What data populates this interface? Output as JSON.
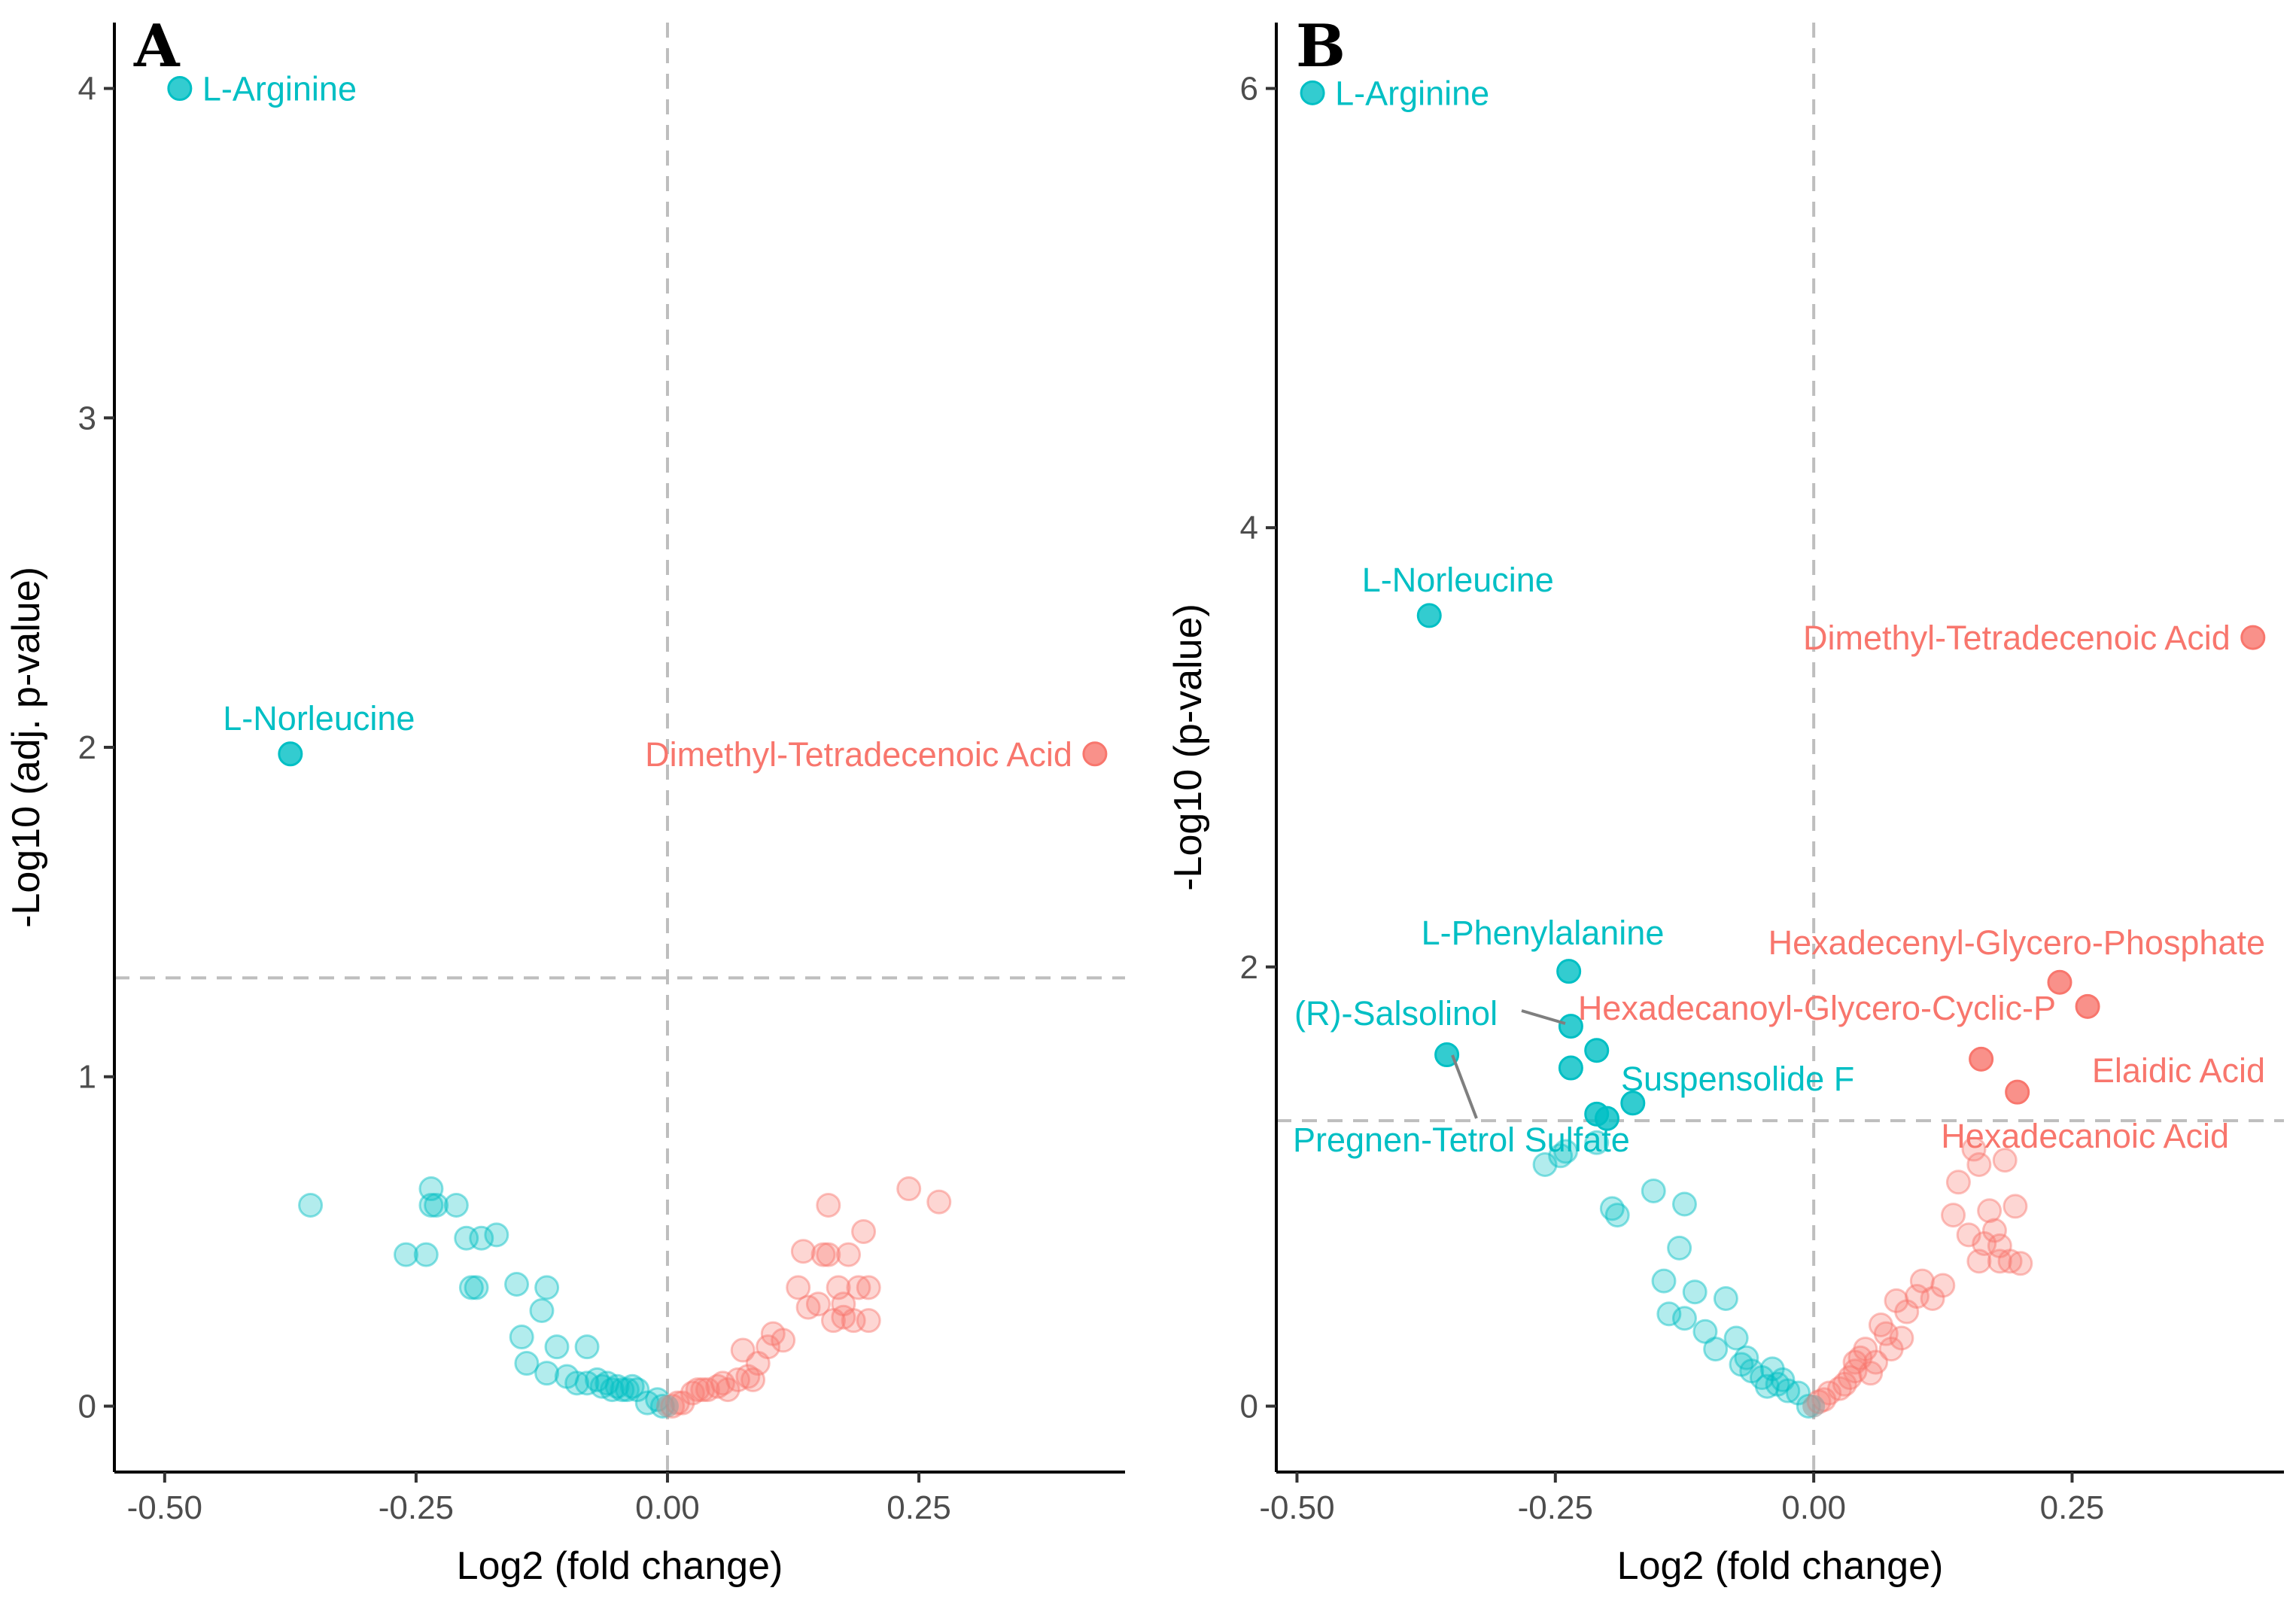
{
  "colors": {
    "up": "#F8766D",
    "down": "#00BFC4",
    "threshold": "#BEBEBE",
    "label_leader": "#7F7F7F"
  },
  "chart_data": [
    {
      "type": "scatter",
      "panel": "A",
      "xlabel": "Log2 (fold change)",
      "ylabel": "-Log10 (adj. p-value)",
      "xlim": [
        -0.55,
        0.455
      ],
      "ylim": [
        -0.2,
        4.2
      ],
      "xticks": [
        -0.5,
        -0.25,
        0,
        0.25
      ],
      "xtick_labels": [
        "-0.50",
        "-0.25",
        "0.00",
        "0.25"
      ],
      "yticks": [
        0,
        1,
        2,
        3,
        4
      ],
      "ytick_labels": [
        "0",
        "1",
        "2",
        "3",
        "4"
      ],
      "threshold_y": 1.3,
      "threshold_x": 0,
      "significant": [
        {
          "name": "L-Arginine",
          "x": -0.485,
          "y": 4.0,
          "group": "down",
          "label": "L-Arginine",
          "anchor": "right"
        },
        {
          "name": "L-Norleucine",
          "x": -0.375,
          "y": 1.98,
          "group": "down",
          "label": "L-Norleucine",
          "anchor": "above"
        },
        {
          "name": "Dimethyl-Tetradecenoic Acid",
          "x": 0.425,
          "y": 1.98,
          "group": "up",
          "label": "Dimethyl-Tetradecenoic Acid",
          "anchor": "left"
        }
      ],
      "nonsignificant": [
        [
          -0.355,
          0.61
        ],
        [
          -0.26,
          0.46
        ],
        [
          -0.24,
          0.46
        ],
        [
          -0.235,
          0.66
        ],
        [
          -0.235,
          0.61
        ],
        [
          -0.23,
          0.61
        ],
        [
          -0.21,
          0.61
        ],
        [
          -0.2,
          0.51
        ],
        [
          -0.195,
          0.36
        ],
        [
          -0.19,
          0.36
        ],
        [
          -0.185,
          0.51
        ],
        [
          -0.17,
          0.52
        ],
        [
          -0.15,
          0.37
        ],
        [
          -0.145,
          0.21
        ],
        [
          -0.14,
          0.13
        ],
        [
          -0.125,
          0.29
        ],
        [
          -0.12,
          0.36
        ],
        [
          -0.12,
          0.1
        ],
        [
          -0.11,
          0.18
        ],
        [
          -0.1,
          0.09
        ],
        [
          -0.09,
          0.07
        ],
        [
          -0.08,
          0.18
        ],
        [
          -0.08,
          0.07
        ],
        [
          -0.07,
          0.08
        ],
        [
          -0.065,
          0.06
        ],
        [
          -0.06,
          0.07
        ],
        [
          -0.055,
          0.05
        ],
        [
          -0.05,
          0.06
        ],
        [
          -0.045,
          0.05
        ],
        [
          -0.04,
          0.05
        ],
        [
          -0.035,
          0.06
        ],
        [
          -0.03,
          0.05
        ],
        [
          -0.02,
          0.01
        ],
        [
          -0.01,
          0.02
        ],
        [
          -0.005,
          0.0
        ],
        [
          0.005,
          0.0
        ],
        [
          0.01,
          0.01
        ],
        [
          0.015,
          0.01
        ],
        [
          0.025,
          0.04
        ],
        [
          0.03,
          0.05
        ],
        [
          0.035,
          0.05
        ],
        [
          0.04,
          0.05
        ],
        [
          0.05,
          0.06
        ],
        [
          0.055,
          0.07
        ],
        [
          0.06,
          0.05
        ],
        [
          0.07,
          0.08
        ],
        [
          0.075,
          0.17
        ],
        [
          0.08,
          0.09
        ],
        [
          0.085,
          0.08
        ],
        [
          0.09,
          0.13
        ],
        [
          0.1,
          0.18
        ],
        [
          0.105,
          0.22
        ],
        [
          0.115,
          0.2
        ],
        [
          0.13,
          0.36
        ],
        [
          0.135,
          0.47
        ],
        [
          0.14,
          0.3
        ],
        [
          0.15,
          0.31
        ],
        [
          0.155,
          0.46
        ],
        [
          0.16,
          0.61
        ],
        [
          0.16,
          0.46
        ],
        [
          0.165,
          0.26
        ],
        [
          0.17,
          0.36
        ],
        [
          0.175,
          0.27
        ],
        [
          0.175,
          0.31
        ],
        [
          0.18,
          0.46
        ],
        [
          0.185,
          0.26
        ],
        [
          0.19,
          0.36
        ],
        [
          0.195,
          0.53
        ],
        [
          0.2,
          0.26
        ],
        [
          0.2,
          0.36
        ],
        [
          0.24,
          0.66
        ],
        [
          0.27,
          0.62
        ]
      ]
    },
    {
      "type": "scatter",
      "panel": "B",
      "xlabel": "Log2 (fold change)",
      "ylabel": "-Log10 (p-value)",
      "xlim": [
        -0.52,
        0.455
      ],
      "ylim": [
        -0.3,
        6.3
      ],
      "xticks": [
        -0.5,
        -0.25,
        0,
        0.25
      ],
      "xtick_labels": [
        "-0.50",
        "-0.25",
        "0.00",
        "0.25"
      ],
      "yticks": [
        0,
        2,
        4,
        6
      ],
      "ytick_labels": [
        "0",
        "2",
        "4",
        "6"
      ],
      "threshold_y": 1.3,
      "threshold_x": 0,
      "significant": [
        {
          "name": "L-Arginine",
          "x": -0.485,
          "y": 5.98,
          "group": "down",
          "label": "L-Arginine",
          "anchor": "right"
        },
        {
          "name": "L-Norleucine",
          "x": -0.372,
          "y": 3.6,
          "group": "down",
          "label": "L-Norleucine",
          "anchor": "above"
        },
        {
          "name": "L-Phenylalanine",
          "x": -0.237,
          "y": 1.98,
          "group": "down",
          "label": "L-Phenylalanine",
          "anchor": "custom"
        },
        {
          "name": "(R)-Salsolinol",
          "x": -0.235,
          "y": 1.73,
          "group": "down",
          "label": "(R)-Salsolinol",
          "anchor": "custom"
        },
        {
          "name": "Pregnen-Tetrol Sulfate",
          "x": -0.355,
          "y": 1.6,
          "group": "down",
          "label": "Pregnen-Tetrol Sulfate",
          "anchor": "custom"
        },
        {
          "name": "Suspensolide F",
          "x": -0.175,
          "y": 1.38,
          "group": "down",
          "label": "Suspensolide F",
          "anchor": "custom"
        },
        {
          "name": "Hexadecenyl-Glycero-Phosphate",
          "x": 0.238,
          "y": 1.93,
          "group": "up",
          "label": "Hexadecenyl-Glycero-Phosphate",
          "anchor": "custom"
        },
        {
          "name": "Hexadecanoyl-Glycero-Cyclic-P",
          "x": 0.265,
          "y": 1.82,
          "group": "up",
          "label": "Hexadecanoyl-Glycero-Cyclic-P",
          "anchor": "custom"
        },
        {
          "name": "Elaidic Acid",
          "x": 0.162,
          "y": 1.58,
          "group": "up",
          "label": "Elaidic Acid",
          "anchor": "custom"
        },
        {
          "name": "Hexadecanoic Acid",
          "x": 0.197,
          "y": 1.43,
          "group": "up",
          "label": "Hexadecanoic Acid",
          "anchor": "custom"
        },
        {
          "name": "Dimethyl-Tetradecenoic Acid",
          "x": 0.425,
          "y": 3.5,
          "group": "up",
          "label": "Dimethyl-Tetradecenoic Acid",
          "anchor": "left"
        },
        {
          "name": "",
          "x": -0.235,
          "y": 1.54,
          "group": "down",
          "label": "",
          "anchor": "none"
        },
        {
          "name": "",
          "x": -0.21,
          "y": 1.62,
          "group": "down",
          "label": "",
          "anchor": "none"
        },
        {
          "name": "",
          "x": -0.21,
          "y": 1.33,
          "group": "down",
          "label": "",
          "anchor": "none"
        },
        {
          "name": "",
          "x": -0.2,
          "y": 1.31,
          "group": "down",
          "label": "",
          "anchor": "none"
        }
      ],
      "nonsignificant": [
        [
          -0.26,
          1.1
        ],
        [
          -0.245,
          1.14
        ],
        [
          -0.24,
          1.16
        ],
        [
          -0.21,
          1.2
        ],
        [
          -0.195,
          0.9
        ],
        [
          -0.19,
          0.87
        ],
        [
          -0.155,
          0.98
        ],
        [
          -0.145,
          0.57
        ],
        [
          -0.14,
          0.42
        ],
        [
          -0.13,
          0.72
        ],
        [
          -0.125,
          0.92
        ],
        [
          -0.125,
          0.4
        ],
        [
          -0.115,
          0.52
        ],
        [
          -0.105,
          0.34
        ],
        [
          -0.095,
          0.26
        ],
        [
          -0.085,
          0.49
        ],
        [
          -0.075,
          0.31
        ],
        [
          -0.07,
          0.19
        ],
        [
          -0.065,
          0.22
        ],
        [
          -0.06,
          0.16
        ],
        [
          -0.05,
          0.13
        ],
        [
          -0.045,
          0.09
        ],
        [
          -0.04,
          0.17
        ],
        [
          -0.035,
          0.1
        ],
        [
          -0.03,
          0.12
        ],
        [
          -0.025,
          0.07
        ],
        [
          -0.015,
          0.06
        ],
        [
          -0.005,
          0.0
        ],
        [
          0.005,
          0.02
        ],
        [
          0.01,
          0.03
        ],
        [
          0.015,
          0.06
        ],
        [
          0.025,
          0.08
        ],
        [
          0.03,
          0.1
        ],
        [
          0.035,
          0.13
        ],
        [
          0.04,
          0.16
        ],
        [
          0.04,
          0.2
        ],
        [
          0.045,
          0.22
        ],
        [
          0.05,
          0.26
        ],
        [
          0.055,
          0.15
        ],
        [
          0.06,
          0.2
        ],
        [
          0.065,
          0.37
        ],
        [
          0.07,
          0.33
        ],
        [
          0.075,
          0.26
        ],
        [
          0.08,
          0.48
        ],
        [
          0.085,
          0.31
        ],
        [
          0.09,
          0.43
        ],
        [
          0.1,
          0.5
        ],
        [
          0.105,
          0.57
        ],
        [
          0.115,
          0.49
        ],
        [
          0.125,
          0.55
        ],
        [
          0.135,
          0.87
        ],
        [
          0.14,
          1.02
        ],
        [
          0.15,
          0.78
        ],
        [
          0.155,
          1.17
        ],
        [
          0.16,
          1.1
        ],
        [
          0.16,
          0.66
        ],
        [
          0.165,
          0.74
        ],
        [
          0.17,
          0.89
        ],
        [
          0.175,
          0.8
        ],
        [
          0.18,
          0.66
        ],
        [
          0.18,
          0.73
        ],
        [
          0.185,
          1.12
        ],
        [
          0.19,
          0.66
        ],
        [
          0.195,
          0.91
        ],
        [
          0.2,
          0.65
        ]
      ]
    }
  ]
}
